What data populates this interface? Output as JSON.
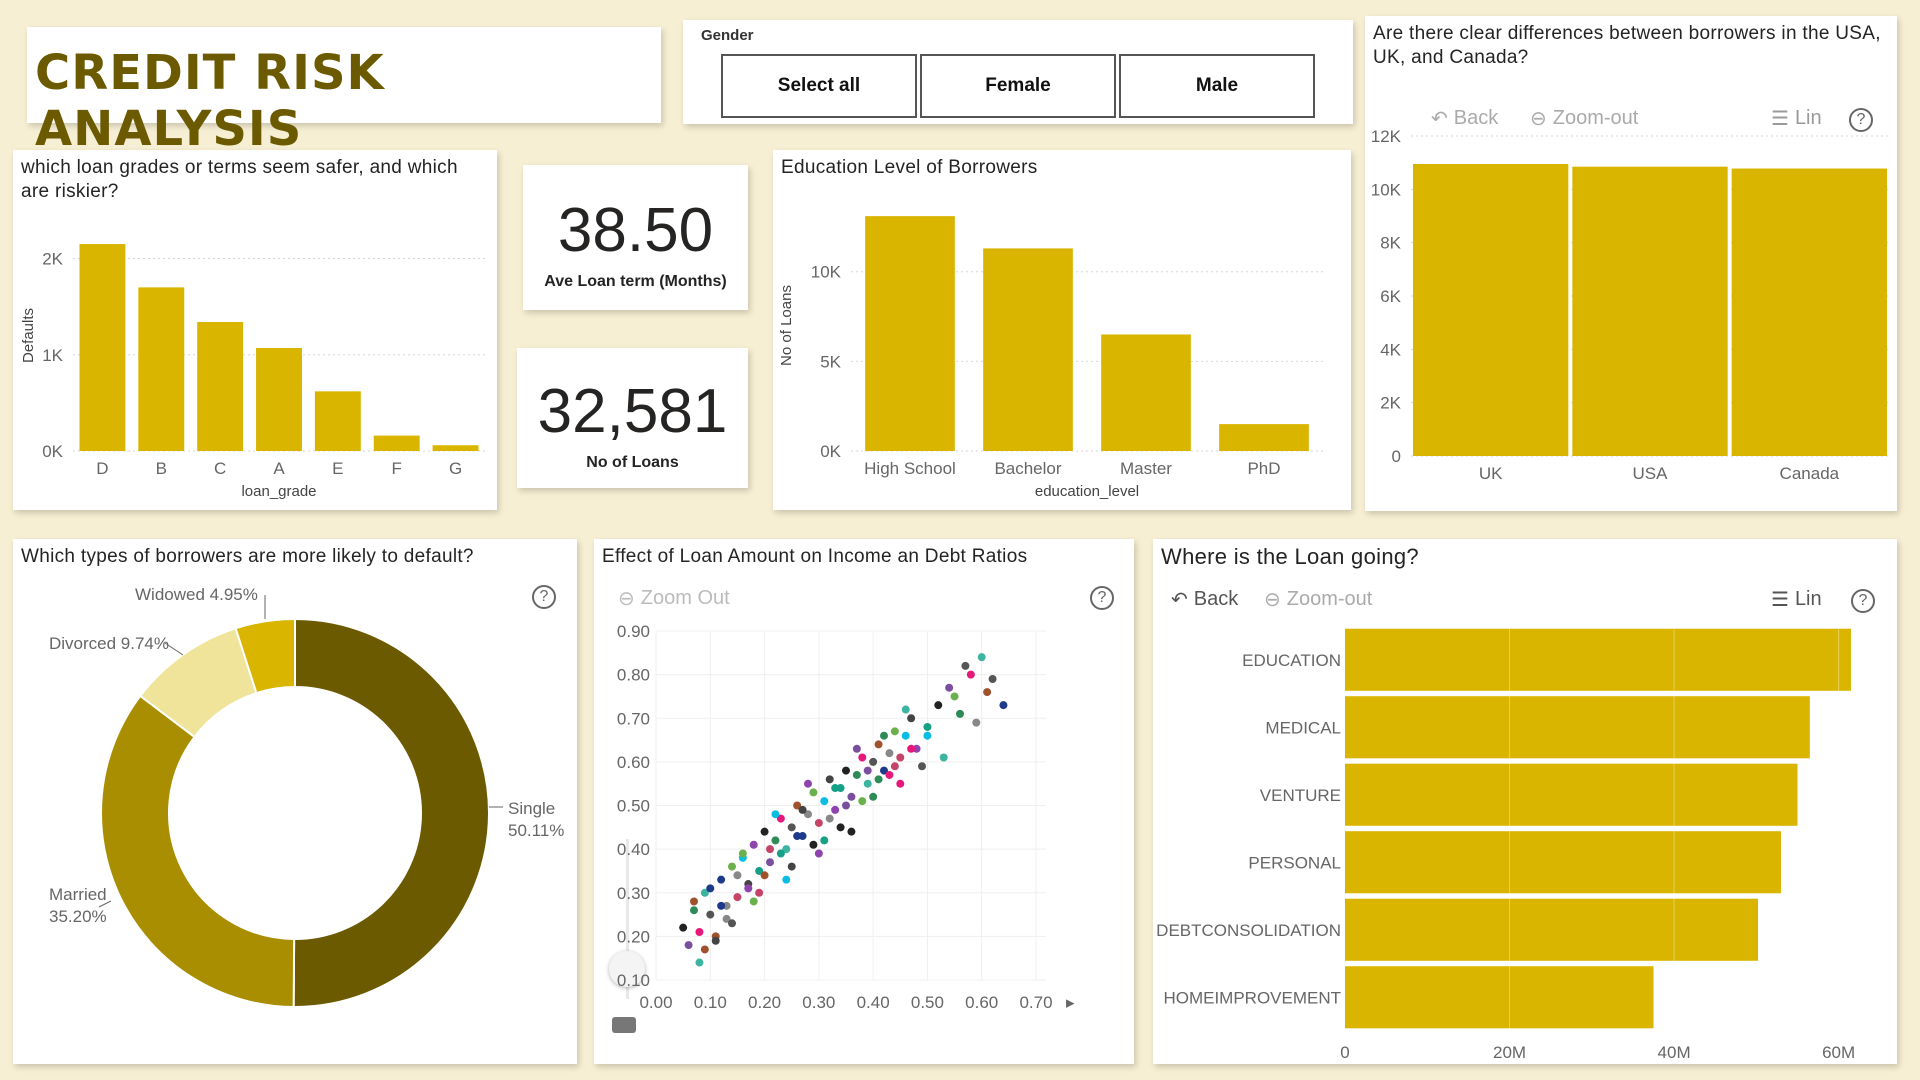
{
  "title": "CREDIT RISK ANALYSIS",
  "slicer": {
    "label": "Gender",
    "options": [
      "Select all",
      "Female",
      "Male"
    ]
  },
  "kpi1": {
    "value": "38.50",
    "label": "Ave Loan term (Months)"
  },
  "kpi2": {
    "value": "32,581",
    "label": "No of Loans"
  },
  "toolbar": {
    "back": "Back",
    "zoom_out_1": "Zoom-out",
    "zoom_out_2": "Zoom Out",
    "lin": "Lin",
    "help": "?"
  },
  "colors": {
    "bar": "#d9b500",
    "single": "#6b5a00",
    "married": "#a88e00",
    "divorced": "#efe49a",
    "widowed": "#d9b500",
    "background": "#f7efd3"
  },
  "chart_data": [
    {
      "id": "grade",
      "type": "bar",
      "title": "which loan grades or terms seem safer, and which are riskier?",
      "xlabel": "loan_grade",
      "ylabel": "Defaults",
      "categories": [
        "D",
        "B",
        "C",
        "A",
        "E",
        "F",
        "G"
      ],
      "values": [
        2150,
        1700,
        1340,
        1070,
        620,
        160,
        60
      ],
      "ylim": [
        0,
        2400
      ],
      "yticks": [
        0,
        1000,
        2000
      ],
      "yticklabels": [
        "0K",
        "1K",
        "2K"
      ]
    },
    {
      "id": "education",
      "type": "bar",
      "title": "Education Level of Borrowers",
      "xlabel": "education_level",
      "ylabel": "No of Loans",
      "categories": [
        "High School",
        "Bachelor",
        "Master",
        "PhD"
      ],
      "values": [
        13100,
        11300,
        6500,
        1500
      ],
      "ylim": [
        0,
        14000
      ],
      "yticks": [
        0,
        5000,
        10000
      ],
      "yticklabels": [
        "0K",
        "5K",
        "10K"
      ]
    },
    {
      "id": "country",
      "type": "bar",
      "title": "Are there clear differences between borrowers in the USA, UK, and Canada?",
      "categories": [
        "UK",
        "USA",
        "Canada"
      ],
      "values": [
        10950,
        10850,
        10780
      ],
      "ylim": [
        0,
        12000
      ],
      "yticks": [
        0,
        2000,
        4000,
        6000,
        8000,
        10000,
        12000
      ],
      "yticklabels": [
        "0",
        "2K",
        "4K",
        "6K",
        "8K",
        "10K",
        "12K"
      ]
    },
    {
      "id": "marital",
      "type": "pie",
      "title": "Which types of borrowers are more likely to default?",
      "labels": [
        "Single",
        "Married",
        "Divorced",
        "Widowed"
      ],
      "values": [
        50.11,
        35.2,
        9.74,
        4.95
      ],
      "value_labels": [
        "50.11%",
        "35.20%",
        "9.74%",
        "4.95%"
      ]
    },
    {
      "id": "scatter",
      "type": "scatter",
      "title": "Effect of Loan Amount on Income an Debt Ratios",
      "xlim": [
        0,
        0.7
      ],
      "ylim": [
        0.1,
        0.9
      ],
      "xticks": [
        "0.00",
        "0.10",
        "0.20",
        "0.30",
        "0.40",
        "0.50",
        "0.60",
        "0.70"
      ],
      "yticks": [
        "0.10",
        "0.20",
        "0.30",
        "0.40",
        "0.50",
        "0.60",
        "0.70",
        "0.80",
        "0.90"
      ],
      "x": [
        0.05,
        0.06,
        0.07,
        0.08,
        0.09,
        0.1,
        0.11,
        0.12,
        0.13,
        0.14,
        0.15,
        0.16,
        0.17,
        0.18,
        0.19,
        0.2,
        0.21,
        0.22,
        0.23,
        0.24,
        0.25,
        0.26,
        0.27,
        0.28,
        0.29,
        0.3,
        0.31,
        0.32,
        0.33,
        0.34,
        0.35,
        0.36,
        0.37,
        0.38,
        0.39,
        0.4,
        0.41,
        0.42,
        0.43,
        0.44,
        0.45,
        0.46,
        0.47,
        0.48,
        0.5,
        0.52,
        0.54,
        0.56,
        0.58,
        0.6,
        0.62,
        0.07,
        0.1,
        0.13,
        0.16,
        0.19,
        0.22,
        0.25,
        0.28,
        0.31,
        0.34,
        0.37,
        0.4,
        0.43,
        0.46,
        0.49,
        0.09,
        0.12,
        0.15,
        0.18,
        0.21,
        0.24,
        0.27,
        0.3,
        0.33,
        0.36,
        0.39,
        0.42,
        0.45,
        0.08,
        0.14,
        0.2,
        0.26,
        0.32,
        0.38,
        0.44,
        0.5,
        0.11,
        0.17,
        0.23,
        0.29,
        0.35,
        0.41,
        0.47,
        0.53,
        0.57,
        0.61,
        0.64,
        0.59,
        0.55
      ],
      "y": [
        0.22,
        0.18,
        0.26,
        0.21,
        0.3,
        0.25,
        0.2,
        0.33,
        0.27,
        0.36,
        0.29,
        0.38,
        0.32,
        0.41,
        0.35,
        0.44,
        0.37,
        0.42,
        0.47,
        0.4,
        0.45,
        0.5,
        0.43,
        0.48,
        0.53,
        0.46,
        0.51,
        0.56,
        0.49,
        0.54,
        0.58,
        0.52,
        0.57,
        0.61,
        0.55,
        0.6,
        0.64,
        0.58,
        0.62,
        0.67,
        0.61,
        0.66,
        0.7,
        0.63,
        0.68,
        0.73,
        0.77,
        0.71,
        0.8,
        0.84,
        0.79,
        0.28,
        0.31,
        0.24,
        0.39,
        0.3,
        0.48,
        0.36,
        0.55,
        0.42,
        0.45,
        0.63,
        0.52,
        0.57,
        0.72,
        0.59,
        0.17,
        0.27,
        0.34,
        0.28,
        0.4,
        0.33,
        0.49,
        0.39,
        0.54,
        0.44,
        0.58,
        0.66,
        0.55,
        0.14,
        0.23,
        0.34,
        0.43,
        0.47,
        0.51,
        0.59,
        0.66,
        0.19,
        0.31,
        0.39,
        0.41,
        0.5,
        0.56,
        0.63,
        0.61,
        0.82,
        0.76,
        0.73,
        0.69,
        0.75
      ]
    },
    {
      "id": "intent",
      "type": "bar",
      "orientation": "horizontal",
      "title": "Where is the Loan going?",
      "categories": [
        "EDUCATION",
        "MEDICAL",
        "VENTURE",
        "PERSONAL",
        "DEBTCONSOLIDATION",
        "HOMEIMPROVEMENT"
      ],
      "values": [
        61.5,
        56.5,
        55.0,
        53.0,
        50.2,
        37.5
      ],
      "unit": "M",
      "xlim": [
        0,
        66
      ],
      "xticks": [
        0,
        20,
        40,
        60
      ],
      "xticklabels": [
        "0",
        "20M",
        "40M",
        "60M"
      ]
    }
  ]
}
